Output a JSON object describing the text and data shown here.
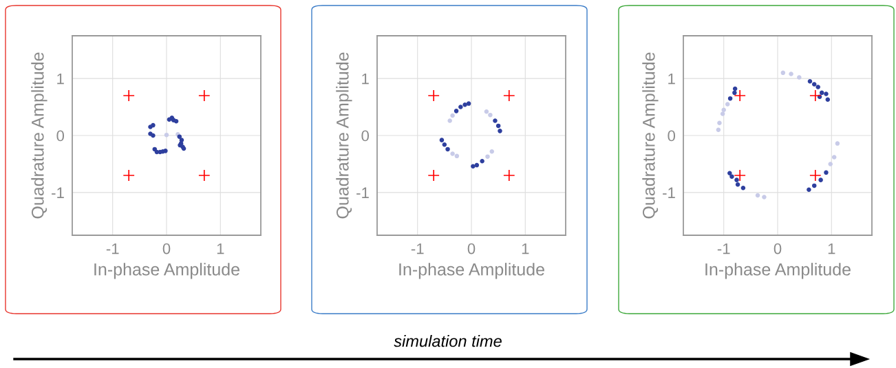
{
  "chart_data": [
    {
      "type": "scatter",
      "xlabel": "In-phase Amplitude",
      "ylabel": "Quadrature Amplitude",
      "xlim": [
        -1.75,
        1.75
      ],
      "ylim": [
        -1.75,
        1.75
      ],
      "xticks": [
        -1,
        0,
        1
      ],
      "yticks": [
        -1,
        0,
        1
      ],
      "grid": true,
      "series": [
        {
          "color": "#ff0000",
          "marker": "cross",
          "x": [
            -0.7,
            0.7,
            -0.7,
            0.7
          ],
          "values": [
            0.7,
            0.7,
            -0.7,
            -0.7
          ]
        },
        {
          "color": "#c8cbe8",
          "marker": "circle",
          "x": [
            0.0,
            0.21
          ],
          "values": [
            0.01,
            0.02
          ]
        },
        {
          "color": "#2e3f9e",
          "marker": "circle",
          "x": [
            -0.3,
            -0.3,
            -0.25,
            -0.25,
            0.05,
            0.1,
            0.18,
            0.13,
            0.24,
            0.28,
            0.27,
            0.25,
            0.3,
            0.32,
            -0.22,
            -0.18,
            -0.12,
            -0.07,
            -0.02
          ],
          "values": [
            0.15,
            0.03,
            0.0,
            0.18,
            0.28,
            0.31,
            0.25,
            0.27,
            -0.02,
            -0.08,
            -0.14,
            -0.17,
            -0.2,
            -0.23,
            -0.24,
            -0.29,
            -0.29,
            -0.28,
            -0.27
          ]
        }
      ]
    },
    {
      "type": "scatter",
      "xlabel": "In-phase Amplitude",
      "ylabel": "Quadrature Amplitude",
      "xlim": [
        -1.75,
        1.75
      ],
      "ylim": [
        -1.75,
        1.75
      ],
      "xticks": [
        -1,
        0,
        1
      ],
      "yticks": [
        -1,
        0,
        1
      ],
      "grid": true,
      "annotations": [
        "simulation time"
      ],
      "series": [
        {
          "color": "#ff0000",
          "marker": "cross",
          "x": [
            -0.7,
            0.7,
            -0.7,
            0.7
          ],
          "values": [
            0.7,
            0.7,
            -0.7,
            -0.7
          ]
        },
        {
          "color": "#c8cbe8",
          "marker": "circle",
          "x": [
            -0.4,
            -0.35,
            0.28,
            0.35,
            -0.35,
            -0.27,
            0.3,
            0.38
          ],
          "values": [
            0.26,
            0.35,
            0.42,
            0.36,
            -0.32,
            -0.36,
            -0.37,
            -0.28
          ]
        },
        {
          "color": "#2e3f9e",
          "marker": "circle",
          "x": [
            -0.28,
            -0.2,
            -0.12,
            -0.05,
            0.44,
            0.5,
            0.53,
            -0.55,
            -0.5,
            -0.44,
            0.03,
            0.1,
            0.2
          ],
          "values": [
            0.43,
            0.5,
            0.54,
            0.56,
            0.26,
            0.17,
            0.08,
            -0.08,
            -0.16,
            -0.24,
            -0.54,
            -0.52,
            -0.45
          ]
        }
      ]
    },
    {
      "type": "scatter",
      "xlabel": "In-phase Amplitude",
      "ylabel": "Quadrature Amplitude",
      "xlim": [
        -1.75,
        1.75
      ],
      "ylim": [
        -1.75,
        1.75
      ],
      "xticks": [
        -1,
        0,
        1
      ],
      "yticks": [
        -1,
        0,
        1
      ],
      "grid": true,
      "series": [
        {
          "color": "#c8cbe8",
          "marker": "circle",
          "x": [
            -0.93,
            -1.0,
            -1.02,
            -1.08,
            -1.1,
            0.1,
            0.25,
            0.4,
            -0.37,
            -0.25,
            0.98,
            1.05,
            1.11
          ],
          "values": [
            0.55,
            0.45,
            0.38,
            0.22,
            0.1,
            1.1,
            1.08,
            1.02,
            -1.05,
            -1.08,
            -0.5,
            -0.38,
            -0.14
          ]
        },
        {
          "color": "#2e3f9e",
          "marker": "circle",
          "x": [
            -0.79,
            -0.8,
            -0.88,
            0.6,
            0.68,
            0.75,
            0.82,
            0.9,
            0.93,
            0.78,
            -0.89,
            -0.85,
            -0.76,
            -0.74,
            -0.64,
            0.58,
            0.68,
            0.8,
            0.9
          ],
          "values": [
            0.82,
            0.75,
            0.65,
            0.95,
            0.9,
            0.85,
            0.75,
            0.73,
            0.63,
            0.68,
            -0.66,
            -0.72,
            -0.78,
            -0.86,
            -0.92,
            -0.95,
            -0.88,
            -0.78,
            -0.65
          ]
        },
        {
          "color": "#ff0000",
          "marker": "cross",
          "x": [
            -0.7,
            0.7,
            -0.7,
            0.7
          ],
          "values": [
            0.7,
            0.7,
            -0.7,
            -0.7
          ]
        }
      ]
    }
  ]
}
